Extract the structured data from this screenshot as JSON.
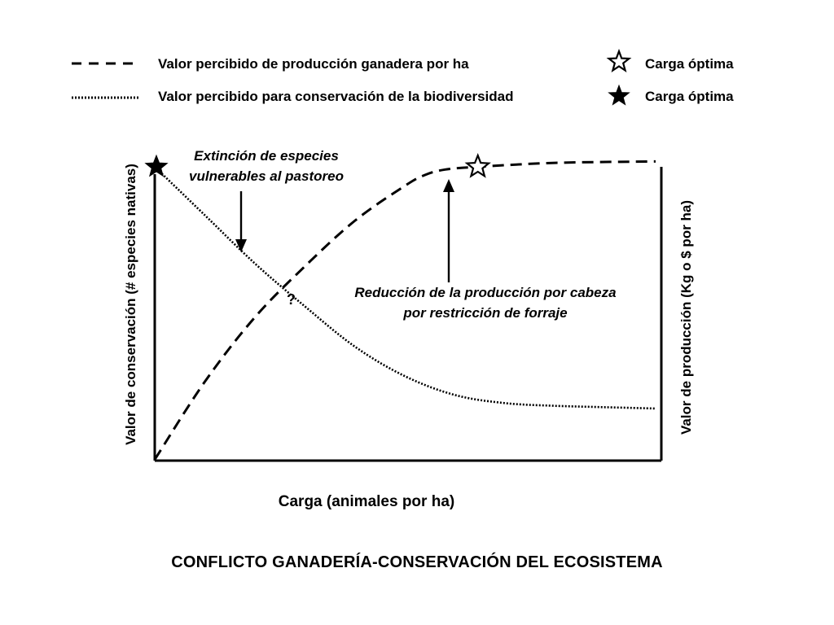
{
  "chart_data": {
    "type": "line",
    "title": "CONFLICTO GANADERÍA-CONSERVACIÓN DEL ECOSISTEMA",
    "xlabel": "Carga (animales por ha)",
    "ylabel_left": "Valor de conservación (# especies nativas)",
    "ylabel_right": "Valor de producción (Kg o $ por ha)",
    "grid": false,
    "legend_position": "top",
    "x_range": [
      0,
      1
    ],
    "y_range": [
      0,
      1
    ],
    "series": [
      {
        "name": "Valor percibido de producción ganadera por ha",
        "style": "dashed",
        "marker_label": "Carga óptima",
        "marker": "outline-star",
        "optimum": [
          0.645,
          1.0
        ],
        "x": [
          0.0,
          0.1,
          0.2,
          0.3,
          0.4,
          0.5,
          0.54,
          0.58,
          0.645,
          0.8,
          1.0
        ],
        "y": [
          -0.09,
          0.2,
          0.44,
          0.63,
          0.8,
          0.93,
          0.97,
          0.99,
          1.0,
          1.015,
          1.02
        ]
      },
      {
        "name": "Valor percibido para conservación de la biodiversidad",
        "style": "dotted",
        "marker_label": "Carga óptima",
        "marker": "filled-star",
        "optimum": [
          0.0,
          1.0
        ],
        "x": [
          0.0,
          0.1,
          0.2,
          0.3,
          0.4,
          0.5,
          0.6,
          0.7,
          0.8,
          0.9,
          1.0
        ],
        "y": [
          1.0,
          0.82,
          0.64,
          0.48,
          0.33,
          0.22,
          0.15,
          0.12,
          0.11,
          0.105,
          0.1
        ]
      }
    ],
    "annotations": [
      {
        "line1": "Extinción de especies",
        "line2": "vulnerables al pastoreo"
      },
      {
        "line1": "Reducción de la producción por cabeza",
        "line2": "por restricción de forraje"
      },
      {
        "text": "?"
      }
    ]
  },
  "colors": {
    "ink": "#000000",
    "background": "#ffffff"
  },
  "icons": {
    "outline_star": "outline-star-icon",
    "filled_star": "filled-star-icon"
  }
}
